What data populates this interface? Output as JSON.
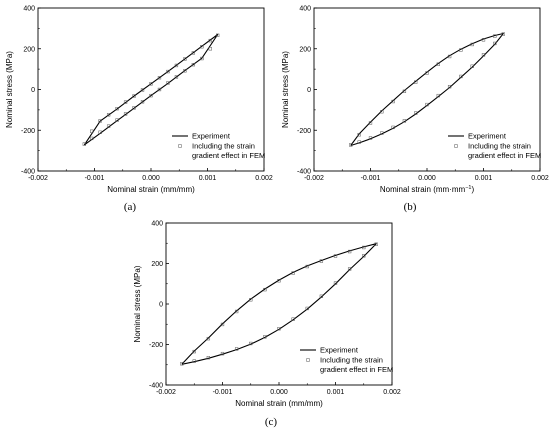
{
  "chart_data": [
    {
      "id": "a",
      "type": "line",
      "panel_label": "(a)",
      "xlabel": "Nominal strain (mm/mm)",
      "ylabel": "Nominal stress (MPa)",
      "xlim": [
        -0.002,
        0.002
      ],
      "ylim": [
        -400,
        400
      ],
      "xticks": [
        "-0.002",
        "-0.001",
        "0.000",
        "0.001",
        "0.002"
      ],
      "yticks": [
        "-400",
        "-200",
        "0",
        "200",
        "400"
      ],
      "legend": {
        "position": "bottom-right",
        "series_names": [
          "Experiment",
          "Including the strain",
          "gradient effect in FEM"
        ]
      },
      "series": [
        {
          "name": "Experiment",
          "style": "line",
          "x": [
            -0.00118,
            -0.0009,
            -0.0006,
            -0.0003,
            0.0,
            0.0003,
            0.0006,
            0.0009,
            0.00118,
            0.0009,
            0.0006,
            0.0003,
            0.0,
            -0.0003,
            -0.0006,
            -0.0009,
            -0.00118
          ],
          "y": [
            -272,
            -215,
            -153,
            -92,
            -30,
            30,
            93,
            153,
            270,
            212,
            150,
            88,
            28,
            -32,
            -95,
            -155,
            -272
          ]
        },
        {
          "name": "Including the strain gradient effect in FEM",
          "style": "markers",
          "x": [
            -0.00118,
            -0.00105,
            -0.0009,
            -0.00075,
            -0.0006,
            -0.00045,
            -0.0003,
            -0.00015,
            0.0,
            0.00015,
            0.0003,
            0.00045,
            0.0006,
            0.00075,
            0.0009,
            0.00105,
            0.00118,
            0.00105,
            0.0009,
            0.00075,
            0.0006,
            0.00045,
            0.0003,
            0.00015,
            0.0,
            -0.00015,
            -0.0003,
            -0.00045,
            -0.0006,
            -0.00075,
            -0.0009,
            -0.00105
          ],
          "y": [
            -268,
            -240,
            -210,
            -180,
            -150,
            -120,
            -90,
            -60,
            -30,
            0,
            32,
            62,
            92,
            122,
            152,
            200,
            266,
            240,
            210,
            180,
            150,
            118,
            88,
            58,
            28,
            -2,
            -32,
            -62,
            -94,
            -124,
            -154,
            -205
          ]
        }
      ]
    },
    {
      "id": "b",
      "type": "line",
      "panel_label": "(b)",
      "xlabel": "Nominal strain (mm·mm",
      "xlabel_sup": "−1",
      "xlabel_end": ")",
      "ylabel": "Nominal stress (MPa)",
      "xlim": [
        -0.002,
        0.002
      ],
      "ylim": [
        -400,
        400
      ],
      "xticks": [
        "-0.002",
        "-0.001",
        "0.000",
        "0.001",
        "0.002"
      ],
      "yticks": [
        "-400",
        "-200",
        "0",
        "200",
        "400"
      ],
      "legend": {
        "position": "bottom-right",
        "series_names": [
          "Experiment",
          "Including the strain",
          "gradient effect in FEM"
        ]
      },
      "series": [
        {
          "name": "Experiment",
          "style": "line",
          "x": [
            -0.00135,
            -0.0012,
            -0.001,
            -0.0008,
            -0.0006,
            -0.0004,
            -0.0002,
            0.0,
            0.0002,
            0.0004,
            0.0006,
            0.0008,
            0.001,
            0.0012,
            0.00135,
            0.0012,
            0.001,
            0.0008,
            0.0006,
            0.0004,
            0.0002,
            0.0,
            -0.0002,
            -0.0004,
            -0.0006,
            -0.0008,
            -0.001,
            -0.0012,
            -0.00135
          ],
          "y": [
            -275,
            -262,
            -242,
            -218,
            -190,
            -158,
            -120,
            -78,
            -35,
            10,
            60,
            110,
            165,
            222,
            275,
            265,
            248,
            225,
            198,
            166,
            128,
            85,
            40,
            -5,
            -55,
            -105,
            -160,
            -218,
            -275
          ]
        },
        {
          "name": "Including the strain gradient effect in FEM",
          "style": "markers",
          "x": [
            -0.00135,
            -0.0012,
            -0.001,
            -0.0008,
            -0.0006,
            -0.0004,
            -0.0002,
            0.0,
            0.0002,
            0.0004,
            0.0006,
            0.0008,
            0.001,
            0.0012,
            0.00135,
            0.0012,
            0.001,
            0.0008,
            0.0006,
            0.0004,
            0.0002,
            0.0,
            -0.0002,
            -0.0004,
            -0.0006,
            -0.0008,
            -0.001,
            -0.0012
          ],
          "y": [
            -272,
            -258,
            -238,
            -214,
            -186,
            -154,
            -116,
            -74,
            -30,
            14,
            64,
            114,
            170,
            226,
            272,
            262,
            244,
            221,
            194,
            162,
            124,
            81,
            36,
            -9,
            -59,
            -109,
            -164,
            -222
          ]
        }
      ]
    },
    {
      "id": "c",
      "type": "line",
      "panel_label": "(c)",
      "xlabel": "Nominal strain (mm/mm)",
      "ylabel": "Nominal stress (MPa)",
      "xlim": [
        -0.002,
        0.002
      ],
      "ylim": [
        -400,
        400
      ],
      "xticks": [
        "-0.002",
        "-0.001",
        "0.000",
        "0.001",
        "0.002"
      ],
      "yticks": [
        "-400",
        "-200",
        "0",
        "200",
        "400"
      ],
      "legend": {
        "position": "bottom-right",
        "series_names": [
          "Experiment",
          "Including the strain",
          "gradient effect in FEM"
        ]
      },
      "series": [
        {
          "name": "Experiment",
          "style": "line",
          "x": [
            -0.00172,
            -0.0015,
            -0.00125,
            -0.001,
            -0.00075,
            -0.0005,
            -0.00025,
            0.0,
            0.00025,
            0.0005,
            0.00075,
            0.001,
            0.00125,
            0.0015,
            0.00172,
            0.0015,
            0.00125,
            0.001,
            0.00075,
            0.0005,
            0.00025,
            0.0,
            -0.00025,
            -0.0005,
            -0.00075,
            -0.001,
            -0.00125,
            -0.0015,
            -0.00172
          ],
          "y": [
            -298,
            -285,
            -268,
            -248,
            -225,
            -198,
            -165,
            -125,
            -78,
            -25,
            35,
            100,
            170,
            235,
            298,
            282,
            262,
            240,
            215,
            188,
            156,
            118,
            74,
            24,
            -34,
            -98,
            -168,
            -232,
            -298
          ]
        },
        {
          "name": "Including the strain gradient effect in FEM",
          "style": "markers",
          "x": [
            -0.00172,
            -0.0015,
            -0.00125,
            -0.001,
            -0.00075,
            -0.0005,
            -0.00025,
            0.0,
            0.00025,
            0.0005,
            0.00075,
            0.001,
            0.00125,
            0.0015,
            0.00172,
            0.0015,
            0.00125,
            0.001,
            0.00075,
            0.0005,
            0.00025,
            0.0,
            -0.00025,
            -0.0005,
            -0.00075,
            -0.001,
            -0.00125,
            -0.0015
          ],
          "y": [
            -295,
            -282,
            -265,
            -245,
            -222,
            -195,
            -162,
            -122,
            -75,
            -22,
            38,
            103,
            173,
            238,
            295,
            279,
            259,
            237,
            212,
            185,
            153,
            115,
            71,
            21,
            -37,
            -101,
            -171,
            -235
          ]
        }
      ]
    }
  ]
}
